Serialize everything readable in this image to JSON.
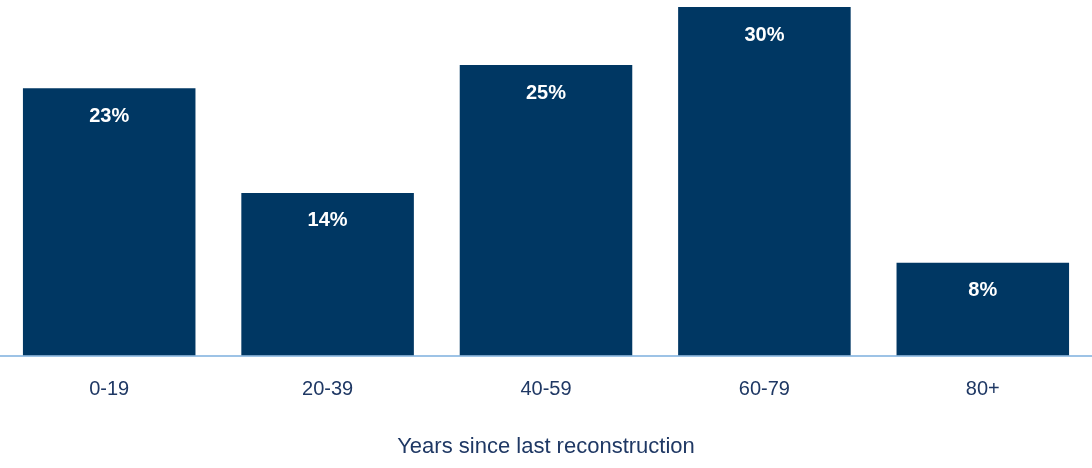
{
  "chart_data": {
    "type": "bar",
    "xlabel": "Years since last reconstruction",
    "categories": [
      "0-19",
      "20-39",
      "40-59",
      "60-79",
      "80+"
    ],
    "values": [
      23,
      14,
      25,
      30,
      8
    ],
    "value_labels": [
      "23%",
      "14%",
      "25%",
      "30%",
      "8%"
    ],
    "color": "#003763",
    "grid": false,
    "legend": false
  }
}
